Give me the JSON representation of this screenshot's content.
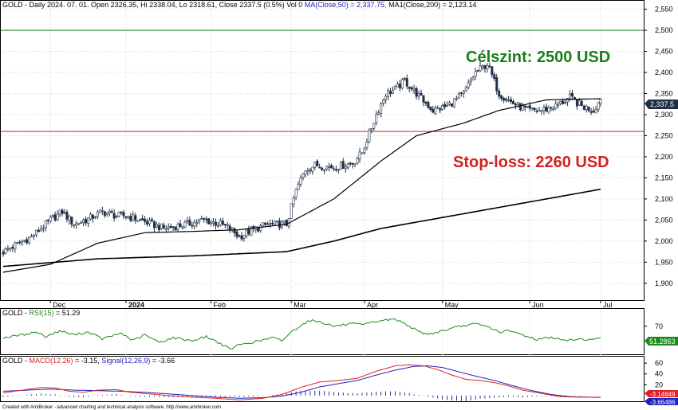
{
  "header": {
    "main": "GOLD - Daily 2024. 07. 01. Open 2326.35, Hi 2338.04, Lo 2318.61, Close 2337.5 (0.5%) Vol 0 ",
    "ma50": "MA(Close,50) = 2,337.75, ",
    "ma200": "MA1(Close,200) = 2,123.14",
    "rsi_prefix": "GOLD - ",
    "rsi_name": "RSI(15)",
    "rsi_value": " = 51.29",
    "macd_prefix": "GOLD - ",
    "macd_name": "MACD(12,26)",
    "macd_value": " = -3.15, ",
    "signal_name": "Signal(12,26,9)",
    "signal_value": " = -3.66"
  },
  "annotations": {
    "target": "Célszint: 2500 USD",
    "stoploss": "Stop-loss: 2260 USD"
  },
  "badges": {
    "price": "2,337.5",
    "rsi": "51.2863",
    "macd": "-3.14849",
    "signal": "-3.66486"
  },
  "footer": "Created with AmiBroker - advanced charting and technical analysis software. http://www.amibroker.com",
  "colors": {
    "target": "#1a7f1a",
    "stoploss": "#d42020",
    "rsi": "#1b8a1b",
    "macd": "#e02020",
    "signal": "#2020c0",
    "hist": "#000080",
    "candle": "#1f2f45"
  },
  "chart_data": [
    {
      "type": "candlestick",
      "ylim": [
        1860,
        2570
      ],
      "yticks": [
        "1,900",
        "1,950",
        "2,000",
        "2,050",
        "2,100",
        "2,150",
        "2,200",
        "2,250",
        "2,300",
        "2,350",
        "2,400",
        "2,450",
        "2,500",
        "2,550"
      ],
      "xlabels": [
        {
          "label": "Dec",
          "day": 20
        },
        {
          "label": "2024",
          "day": 52
        },
        {
          "label": "Feb",
          "day": 88
        },
        {
          "label": "Mar",
          "day": 122
        },
        {
          "label": "Apr",
          "day": 153
        },
        {
          "label": "May",
          "day": 186
        },
        {
          "label": "Jun",
          "day": 223
        },
        {
          "label": "Jul",
          "day": 253
        }
      ],
      "hlines": [
        {
          "name": "target",
          "value": 2500
        },
        {
          "name": "stop-loss",
          "value": 2260
        }
      ],
      "close_anchors": [
        [
          0,
          1975
        ],
        [
          5,
          1990
        ],
        [
          12,
          2010
        ],
        [
          20,
          2050
        ],
        [
          25,
          2070
        ],
        [
          30,
          2040
        ],
        [
          35,
          2050
        ],
        [
          42,
          2070
        ],
        [
          48,
          2060
        ],
        [
          52,
          2060
        ],
        [
          58,
          2050
        ],
        [
          68,
          2030
        ],
        [
          78,
          2040
        ],
        [
          85,
          2050
        ],
        [
          92,
          2040
        ],
        [
          96,
          2030
        ],
        [
          100,
          2010
        ],
        [
          105,
          2025
        ],
        [
          112,
          2040
        ],
        [
          120,
          2040
        ],
        [
          124,
          2120
        ],
        [
          128,
          2170
        ],
        [
          132,
          2180
        ],
        [
          140,
          2175
        ],
        [
          148,
          2185
        ],
        [
          152,
          2210
        ],
        [
          158,
          2300
        ],
        [
          162,
          2350
        ],
        [
          166,
          2360
        ],
        [
          170,
          2380
        ],
        [
          175,
          2350
        ],
        [
          182,
          2310
        ],
        [
          188,
          2320
        ],
        [
          195,
          2350
        ],
        [
          200,
          2400
        ],
        [
          205,
          2420
        ],
        [
          210,
          2350
        ],
        [
          215,
          2330
        ],
        [
          222,
          2310
        ],
        [
          228,
          2310
        ],
        [
          234,
          2320
        ],
        [
          240,
          2340
        ],
        [
          245,
          2320
        ],
        [
          250,
          2310
        ],
        [
          253,
          2337.5
        ]
      ],
      "ma50": [
        [
          0,
          1926
        ],
        [
          20,
          1945
        ],
        [
          40,
          1995
        ],
        [
          60,
          2020
        ],
        [
          80,
          2023
        ],
        [
          100,
          2027
        ],
        [
          120,
          2040
        ],
        [
          140,
          2100
        ],
        [
          160,
          2190
        ],
        [
          175,
          2250
        ],
        [
          195,
          2280
        ],
        [
          210,
          2310
        ],
        [
          230,
          2335
        ],
        [
          253,
          2337.75
        ]
      ],
      "ma200": [
        [
          0,
          1940
        ],
        [
          40,
          1958
        ],
        [
          80,
          1965
        ],
        [
          120,
          1975
        ],
        [
          140,
          2000
        ],
        [
          160,
          2030
        ],
        [
          180,
          2050
        ],
        [
          200,
          2070
        ],
        [
          220,
          2090
        ],
        [
          240,
          2110
        ],
        [
          253,
          2123.14
        ]
      ]
    },
    {
      "type": "line",
      "name": "RSI(15)",
      "ylim": [
        20,
        100
      ],
      "yticks": [
        "70"
      ],
      "anchors": [
        [
          0,
          50
        ],
        [
          8,
          55
        ],
        [
          14,
          60
        ],
        [
          18,
          52
        ],
        [
          24,
          62
        ],
        [
          30,
          55
        ],
        [
          36,
          60
        ],
        [
          42,
          48
        ],
        [
          50,
          58
        ],
        [
          55,
          45
        ],
        [
          60,
          55
        ],
        [
          66,
          42
        ],
        [
          72,
          50
        ],
        [
          80,
          45
        ],
        [
          86,
          52
        ],
        [
          92,
          40
        ],
        [
          96,
          30
        ],
        [
          100,
          38
        ],
        [
          108,
          44
        ],
        [
          114,
          50
        ],
        [
          118,
          45
        ],
        [
          122,
          60
        ],
        [
          126,
          72
        ],
        [
          130,
          80
        ],
        [
          134,
          78
        ],
        [
          140,
          70
        ],
        [
          148,
          74
        ],
        [
          152,
          72
        ],
        [
          156,
          76
        ],
        [
          160,
          80
        ],
        [
          166,
          82
        ],
        [
          170,
          75
        ],
        [
          176,
          60
        ],
        [
          180,
          56
        ],
        [
          186,
          62
        ],
        [
          194,
          70
        ],
        [
          200,
          74
        ],
        [
          206,
          68
        ],
        [
          210,
          60
        ],
        [
          214,
          62
        ],
        [
          220,
          55
        ],
        [
          226,
          47
        ],
        [
          232,
          51
        ],
        [
          238,
          45
        ],
        [
          244,
          48
        ],
        [
          250,
          46
        ],
        [
          253,
          51.29
        ]
      ]
    },
    {
      "type": "line",
      "name": "MACD",
      "ylim": [
        -12,
        72
      ],
      "yticks": [
        "60",
        "40",
        "20"
      ],
      "macd": [
        [
          0,
          5
        ],
        [
          8,
          10
        ],
        [
          16,
          15
        ],
        [
          22,
          14
        ],
        [
          28,
          8
        ],
        [
          34,
          6
        ],
        [
          40,
          10
        ],
        [
          48,
          11
        ],
        [
          54,
          6
        ],
        [
          62,
          3
        ],
        [
          70,
          0
        ],
        [
          80,
          -3
        ],
        [
          90,
          -5
        ],
        [
          100,
          -8
        ],
        [
          110,
          -5
        ],
        [
          118,
          2
        ],
        [
          126,
          15
        ],
        [
          134,
          25
        ],
        [
          142,
          28
        ],
        [
          150,
          32
        ],
        [
          158,
          45
        ],
        [
          166,
          55
        ],
        [
          172,
          57
        ],
        [
          178,
          55
        ],
        [
          184,
          48
        ],
        [
          190,
          38
        ],
        [
          196,
          30
        ],
        [
          202,
          28
        ],
        [
          208,
          24
        ],
        [
          214,
          18
        ],
        [
          220,
          10
        ],
        [
          228,
          4
        ],
        [
          236,
          -2
        ],
        [
          244,
          -3
        ],
        [
          253,
          -3.15
        ]
      ],
      "signal": [
        [
          0,
          8
        ],
        [
          10,
          10
        ],
        [
          20,
          12
        ],
        [
          30,
          10
        ],
        [
          40,
          9
        ],
        [
          50,
          8
        ],
        [
          60,
          6
        ],
        [
          70,
          3
        ],
        [
          80,
          0
        ],
        [
          90,
          -3
        ],
        [
          100,
          -5
        ],
        [
          110,
          -4
        ],
        [
          118,
          -1
        ],
        [
          126,
          6
        ],
        [
          134,
          16
        ],
        [
          142,
          22
        ],
        [
          150,
          28
        ],
        [
          158,
          38
        ],
        [
          166,
          47
        ],
        [
          174,
          54
        ],
        [
          180,
          55
        ],
        [
          186,
          52
        ],
        [
          192,
          45
        ],
        [
          200,
          36
        ],
        [
          208,
          28
        ],
        [
          216,
          18
        ],
        [
          224,
          9
        ],
        [
          232,
          2
        ],
        [
          240,
          -2
        ],
        [
          248,
          -3
        ],
        [
          253,
          -3.66
        ]
      ]
    }
  ]
}
